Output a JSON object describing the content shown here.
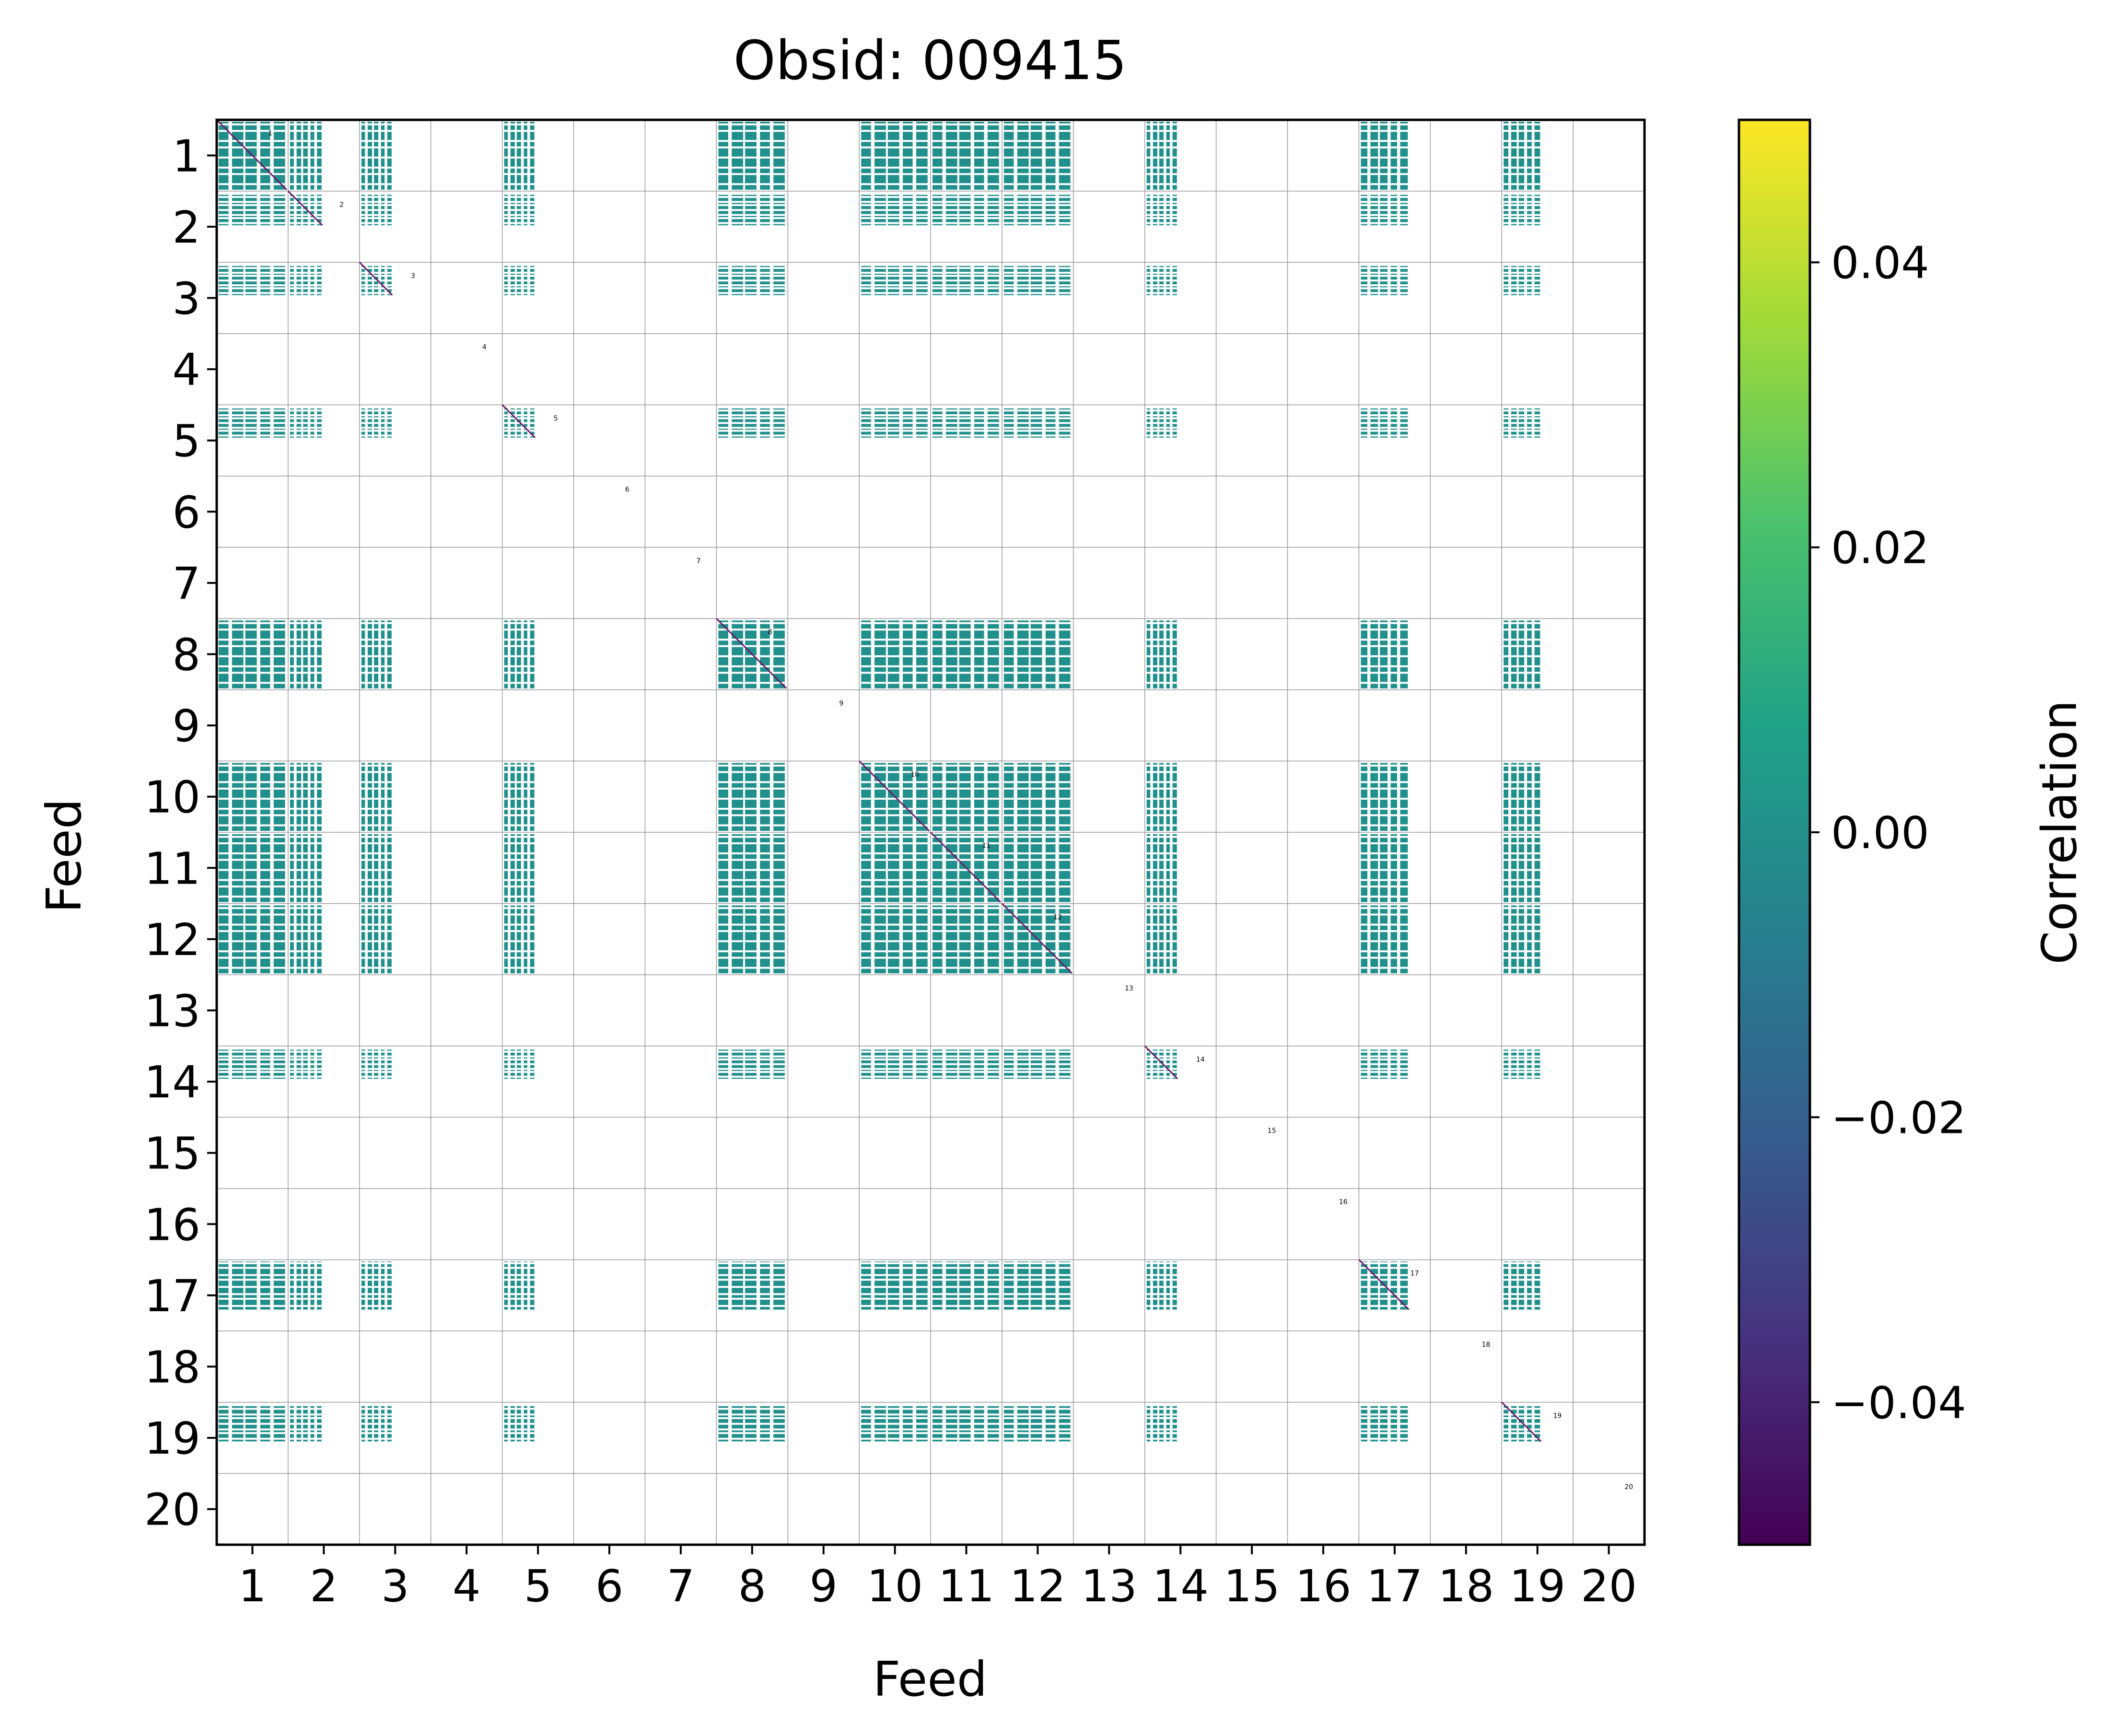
{
  "chart_data": {
    "type": "heatmap",
    "title": "Obsid: 009415",
    "xlabel": "Feed",
    "ylabel": "Feed",
    "feeds": [
      "1",
      "2",
      "3",
      "4",
      "5",
      "6",
      "7",
      "8",
      "9",
      "10",
      "11",
      "12",
      "13",
      "14",
      "15",
      "16",
      "17",
      "18",
      "19",
      "20"
    ],
    "active_feeds": [
      1,
      2,
      3,
      5,
      8,
      10,
      11,
      12,
      14,
      17,
      19
    ],
    "block_value": 0.0,
    "diagonal_value": -0.05,
    "colorbar": {
      "label": "Correlation",
      "range": [
        -0.05,
        0.05
      ],
      "ticks": [
        0.04,
        0.02,
        0.0,
        -0.02,
        -0.04
      ],
      "tick_labels": [
        "0.04",
        "0.02",
        "0.00",
        "−0.02",
        "−0.04"
      ],
      "colormap": "viridis"
    },
    "colors": {
      "block": "#21908d",
      "diagonal": "#6a1a6a",
      "grid": "#9a9a9a",
      "viridis_stops": [
        "#440154",
        "#46327e",
        "#365c8d",
        "#277f8e",
        "#1fa187",
        "#4ac16d",
        "#a0da39",
        "#fde725"
      ]
    }
  }
}
